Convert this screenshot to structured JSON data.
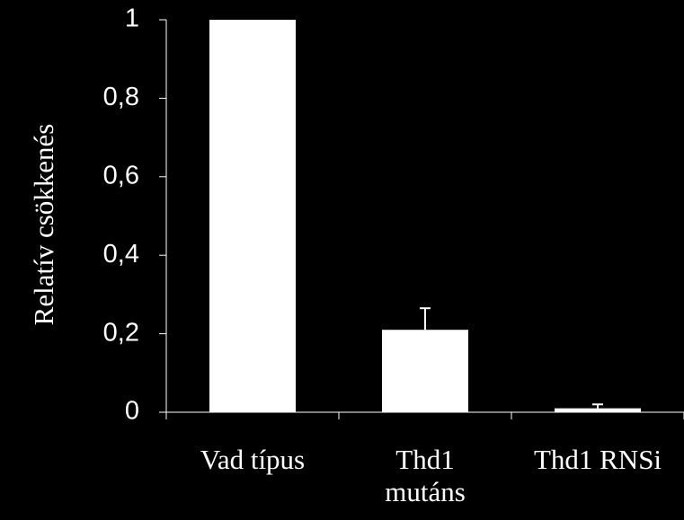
{
  "chart_data": {
    "type": "bar",
    "y_label": "Relatív csökkenés",
    "categories": [
      "Vad típus",
      "Thd1\nmutáns",
      "Thd1 RNSi"
    ],
    "values": [
      1,
      0.21,
      0.01
    ],
    "errors": [
      0,
      0.055,
      0.01
    ],
    "color": "#ffffff",
    "ylim": [
      0,
      1
    ],
    "yticks": [
      0,
      {
        "value": 0.2,
        "label": "0,2"
      },
      {
        "value": 0.4,
        "label": "0,4"
      },
      {
        "value": 0.6,
        "label": "0,6"
      },
      {
        "value": 0.8,
        "label": "0,8"
      },
      1
    ]
  }
}
